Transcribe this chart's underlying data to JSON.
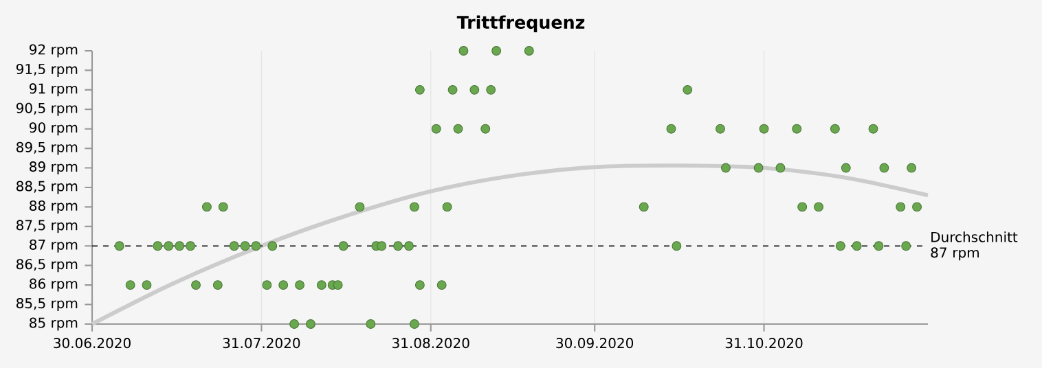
{
  "chart_data": {
    "type": "scatter",
    "title": "Trittfrequenz",
    "xlim": [
      "2020-06-30",
      "2020-11-30"
    ],
    "xticks": [
      {
        "value": "2020-06-30",
        "label": "30.06.2020"
      },
      {
        "value": "2020-07-31",
        "label": "31.07.2020"
      },
      {
        "value": "2020-08-31",
        "label": "31.08.2020"
      },
      {
        "value": "2020-09-30",
        "label": "30.09.2020"
      },
      {
        "value": "2020-10-31",
        "label": "31.10.2020"
      }
    ],
    "ylim": [
      85,
      92
    ],
    "yticks": [
      {
        "value": 85,
        "label": "85 rpm"
      },
      {
        "value": 85.5,
        "label": "85,5 rpm"
      },
      {
        "value": 86,
        "label": "86 rpm"
      },
      {
        "value": 86.5,
        "label": "86,5 rpm"
      },
      {
        "value": 87,
        "label": "87 rpm"
      },
      {
        "value": 87.5,
        "label": "87,5 rpm"
      },
      {
        "value": 88,
        "label": "88 rpm"
      },
      {
        "value": 88.5,
        "label": "88,5 rpm"
      },
      {
        "value": 89,
        "label": "89 rpm"
      },
      {
        "value": 89.5,
        "label": "89,5 rpm"
      },
      {
        "value": 90,
        "label": "90 rpm"
      },
      {
        "value": 90.5,
        "label": "90,5 rpm"
      },
      {
        "value": 91,
        "label": "91 rpm"
      },
      {
        "value": 91.5,
        "label": "91,5 rpm"
      },
      {
        "value": 92,
        "label": "92 rpm"
      }
    ],
    "grid": "x",
    "series": [
      {
        "color": "#6aa84f",
        "marker": "circle",
        "x": [
          "2020-07-05",
          "2020-07-07",
          "2020-07-10",
          "2020-07-12",
          "2020-07-14",
          "2020-07-16",
          "2020-07-18",
          "2020-07-19",
          "2020-07-21",
          "2020-07-23",
          "2020-07-24",
          "2020-07-26",
          "2020-07-28",
          "2020-07-30",
          "2020-08-01",
          "2020-08-02",
          "2020-08-04",
          "2020-08-06",
          "2020-08-07",
          "2020-08-09",
          "2020-08-11",
          "2020-08-13",
          "2020-08-14",
          "2020-08-15",
          "2020-08-18",
          "2020-08-20",
          "2020-08-21",
          "2020-08-22",
          "2020-08-25",
          "2020-08-27",
          "2020-08-28",
          "2020-08-28",
          "2020-08-29",
          "2020-08-29",
          "2020-09-01",
          "2020-09-02",
          "2020-09-03",
          "2020-09-04",
          "2020-09-05",
          "2020-09-06",
          "2020-09-08",
          "2020-09-10",
          "2020-09-11",
          "2020-09-12",
          "2020-09-18",
          "2020-10-09",
          "2020-10-14",
          "2020-10-15",
          "2020-10-17",
          "2020-10-23",
          "2020-10-24",
          "2020-10-30",
          "2020-10-31",
          "2020-11-03",
          "2020-11-06",
          "2020-11-07",
          "2020-11-10",
          "2020-11-13",
          "2020-11-14",
          "2020-11-15",
          "2020-11-17",
          "2020-11-20",
          "2020-11-21",
          "2020-11-22",
          "2020-11-25",
          "2020-11-26",
          "2020-11-27",
          "2020-11-28"
        ],
        "values": [
          87,
          86,
          86,
          87,
          87,
          87,
          87,
          86,
          88,
          86,
          88,
          87,
          87,
          87,
          86,
          87,
          86,
          85,
          86,
          85,
          86,
          86,
          86,
          87,
          88,
          85,
          87,
          87,
          87,
          87,
          88,
          85,
          86,
          91,
          90,
          86,
          88,
          91,
          90,
          92,
          91,
          90,
          91,
          92,
          92,
          88,
          90,
          87,
          91,
          90,
          89,
          89,
          90,
          89,
          90,
          88,
          88,
          90,
          87,
          89,
          87,
          90,
          87,
          89,
          88,
          87,
          89,
          88
        ]
      },
      {
        "type": "line",
        "color": "#cccccc",
        "marker": "none",
        "x": [
          "2020-06-30",
          "2020-07-15",
          "2020-07-31",
          "2020-08-15",
          "2020-08-31",
          "2020-09-15",
          "2020-09-30",
          "2020-10-15",
          "2020-10-31",
          "2020-11-15",
          "2020-11-30"
        ],
        "values": [
          85.0,
          86.05,
          87.0,
          87.75,
          88.4,
          88.8,
          89.02,
          89.06,
          89.0,
          88.75,
          88.3
        ]
      }
    ],
    "ref_lines": [
      {
        "axis": "y",
        "value": 87,
        "label": "Durchschnitt 87 rpm",
        "color": "#000000",
        "line_style": "dashed"
      }
    ]
  }
}
